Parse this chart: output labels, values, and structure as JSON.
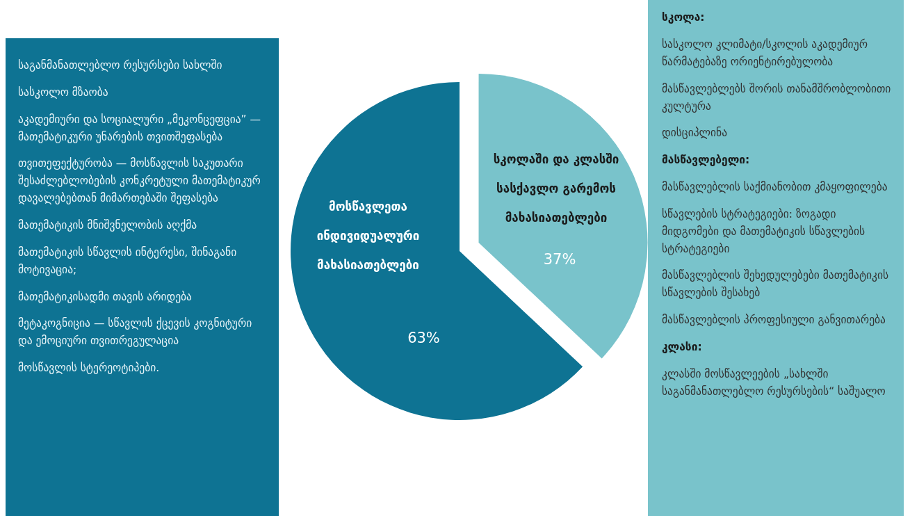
{
  "chart_data": [
    {
      "type": "other",
      "annotations": [
        "საგანმანათლებლო რესურსები სახლში",
        "სასკოლო მზაობა",
        "აკადემიური და სოციალური „მეკონცეფცია” — მათემატიკური უნარების თვითშეფასება",
        "თვითეფექტურობა — მოსწავლის საკუთარი შესაძლებლობების კონკრეტული მათემატიკურ დავალებებთან მიმართებაში შეფასება",
        "მათემატიკის მნიშვნელობის აღქმა",
        "მათემატიკის სწავლის ინტერესი, შინაგანი მოტივაცია;",
        "მათემატიკისადმი თავის არიდება",
        "მეტაკოგნიცია — სწავლის ქცევის კოგნიტური და ემოციური თვითრეგულაცია",
        "მოსწავლის სტერეოტიპები."
      ]
    },
    {
      "type": "pie",
      "categories": [
        "მოსწავლეთა ინდივიდუალური მახასიათებლები",
        "სკოლაში და კლასში სასქავლო გარემოს მახასიათებლები"
      ],
      "values": [
        63,
        37
      ],
      "colors": [
        "#0e7393",
        "#79c3cb"
      ],
      "value_labels": [
        "63%",
        "37%"
      ]
    },
    {
      "type": "other",
      "title": "სკოლა:",
      "annotations": [
        "სასკოლო კლიმატი/სკოლის აკადემიურ წარმატებაზე ორიენტირებულობა",
        "მასწავლებლებს შორის თანამშრობლობითი კულტურა",
        "დისციპლინა"
      ]
    },
    {
      "type": "other",
      "title": "მასწავლებელი:",
      "annotations": [
        "მასწავლებლის საქმიანობით კმაყოფილება",
        "სწავლების სტრატეგიები: ზოგადი მიდგომები და მათემატიკის სწავლების სტრატეგიები",
        "მასწავლებლის შეხედულებები მათემატიკის სწავლების შესახებ",
        "მასწავლებლის პროფესიული განვითარება"
      ]
    },
    {
      "type": "other",
      "title": "კლასი:",
      "annotations": [
        "კლასში მოსწავლეების „სახლში საგანმანათლებლო რესურსების“ საშუალო"
      ]
    }
  ]
}
